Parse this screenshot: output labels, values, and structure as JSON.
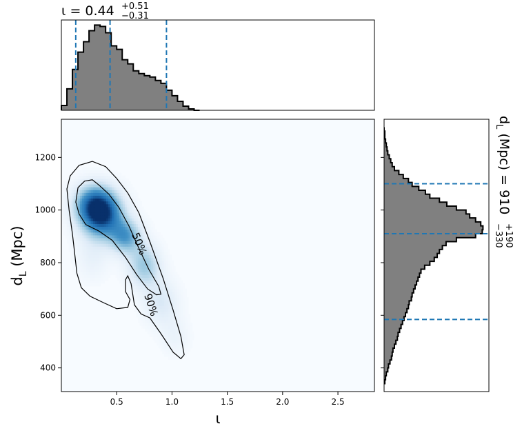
{
  "chart_data": {
    "type": "corner",
    "x_param": "ι",
    "y_param": "d_L",
    "top_title": {
      "main": "ι = 0.44",
      "sup": "+0.51",
      "sub": "−0.31"
    },
    "right_title": {
      "main": "d",
      "sub_L": "L",
      "rest": " (Mpc) = 910",
      "sup": "+190",
      "sub": "−330"
    },
    "main": {
      "xlabel": "ι",
      "ylabel_main": "d",
      "ylabel_sub": "L",
      "ylabel_rest": " (Mpc)",
      "xlim": [
        0.0,
        2.83
      ],
      "ylim": [
        310,
        1345
      ],
      "xticks": [
        0.5,
        1.0,
        1.5,
        2.0,
        2.5
      ],
      "xtick_labels": [
        "0.5",
        "1.0",
        "1.5",
        "2.0",
        "2.5"
      ],
      "yticks": [
        400,
        600,
        800,
        1000,
        1200
      ],
      "ytick_labels": [
        "400",
        "600",
        "800",
        "1000",
        "1200"
      ],
      "contour_labels": [
        "50%",
        "90%"
      ],
      "contour_levels": [
        {
          "name": "90%",
          "points": [
            [
              0.07,
              1000
            ],
            [
              0.05,
              1080
            ],
            [
              0.08,
              1130
            ],
            [
              0.16,
              1170
            ],
            [
              0.28,
              1185
            ],
            [
              0.4,
              1165
            ],
            [
              0.5,
              1120
            ],
            [
              0.6,
              1065
            ],
            [
              0.7,
              990
            ],
            [
              0.8,
              880
            ],
            [
              0.92,
              740
            ],
            [
              1.01,
              620
            ],
            [
              1.08,
              520
            ],
            [
              1.11,
              450
            ],
            [
              1.08,
              435
            ],
            [
              1.01,
              460
            ],
            [
              0.9,
              530
            ],
            [
              0.8,
              590
            ],
            [
              0.72,
              605
            ],
            [
              0.66,
              640
            ],
            [
              0.63,
              720
            ],
            [
              0.6,
              750
            ],
            [
              0.58,
              735
            ],
            [
              0.58,
              690
            ],
            [
              0.62,
              660
            ],
            [
              0.6,
              630
            ],
            [
              0.5,
              625
            ],
            [
              0.38,
              648
            ],
            [
              0.26,
              672
            ],
            [
              0.18,
              705
            ],
            [
              0.14,
              760
            ],
            [
              0.12,
              835
            ],
            [
              0.1,
              910
            ],
            [
              0.07,
              1000
            ]
          ]
        },
        {
          "name": "50%",
          "points": [
            [
              0.13,
              1030
            ],
            [
              0.15,
              1085
            ],
            [
              0.21,
              1110
            ],
            [
              0.28,
              1115
            ],
            [
              0.34,
              1095
            ],
            [
              0.43,
              1060
            ],
            [
              0.52,
              1010
            ],
            [
              0.61,
              940
            ],
            [
              0.7,
              855
            ],
            [
              0.79,
              775
            ],
            [
              0.88,
              710
            ],
            [
              0.9,
              680
            ],
            [
              0.86,
              678
            ],
            [
              0.78,
              700
            ],
            [
              0.68,
              755
            ],
            [
              0.58,
              820
            ],
            [
              0.46,
              885
            ],
            [
              0.34,
              920
            ],
            [
              0.22,
              945
            ],
            [
              0.16,
              985
            ],
            [
              0.13,
              1030
            ]
          ]
        }
      ],
      "density_peaks": [
        {
          "x": 0.36,
          "y": 985,
          "sx": 0.13,
          "sy": 60,
          "w": 1.0
        },
        {
          "x": 0.28,
          "y": 1030,
          "sx": 0.12,
          "sy": 50,
          "w": 0.45
        },
        {
          "x": 0.58,
          "y": 900,
          "sx": 0.1,
          "sy": 45,
          "w": 0.55
        },
        {
          "x": 0.75,
          "y": 790,
          "sx": 0.1,
          "sy": 55,
          "w": 0.42
        },
        {
          "x": 0.9,
          "y": 650,
          "sx": 0.11,
          "sy": 60,
          "w": 0.22
        },
        {
          "x": 1.03,
          "y": 520,
          "sx": 0.09,
          "sy": 50,
          "w": 0.1
        },
        {
          "x": 0.28,
          "y": 820,
          "sx": 0.1,
          "sy": 60,
          "w": 0.12
        }
      ]
    },
    "top_hist": {
      "xlim": [
        0.0,
        2.83
      ],
      "bin_edges": [
        0.0,
        0.05,
        0.1,
        0.15,
        0.2,
        0.25,
        0.3,
        0.35,
        0.4,
        0.45,
        0.5,
        0.55,
        0.6,
        0.65,
        0.7,
        0.75,
        0.8,
        0.85,
        0.9,
        0.95,
        1.0,
        1.05,
        1.1,
        1.15,
        1.2,
        1.25
      ],
      "counts": [
        7,
        31,
        59,
        84,
        99,
        115,
        123,
        121,
        112,
        93,
        88,
        73,
        67,
        57,
        53,
        50,
        48,
        43,
        39,
        29,
        21,
        13,
        6,
        2,
        0
      ],
      "quantile_lines": [
        0.13,
        0.44,
        0.95
      ]
    },
    "right_hist": {
      "ylim": [
        310,
        1345
      ],
      "bin_edges": [
        340,
        355,
        370,
        385,
        400,
        415,
        430,
        445,
        460,
        475,
        490,
        505,
        520,
        535,
        550,
        565,
        580,
        595,
        610,
        625,
        640,
        655,
        670,
        685,
        700,
        715,
        730,
        745,
        760,
        775,
        790,
        805,
        820,
        835,
        850,
        865,
        880,
        895,
        910,
        925,
        940,
        955,
        970,
        985,
        1000,
        1015,
        1030,
        1045,
        1060,
        1075,
        1090,
        1105,
        1120,
        1135,
        1150,
        1165,
        1180,
        1195,
        1210,
        1225,
        1240,
        1255,
        1270,
        1285,
        1300,
        1315
      ],
      "counts": [
        1,
        2,
        3,
        5,
        6,
        8,
        10,
        11,
        12,
        14,
        16,
        18,
        19,
        21,
        23,
        25,
        27,
        29,
        31,
        33,
        34,
        37,
        38,
        40,
        42,
        44,
        46,
        48,
        50,
        55,
        62,
        68,
        72,
        75,
        79,
        84,
        98,
        124,
        133,
        134,
        131,
        124,
        116,
        111,
        98,
        85,
        75,
        62,
        56,
        47,
        38,
        33,
        26,
        20,
        14,
        11,
        9,
        7,
        5,
        4,
        3,
        2,
        1,
        1,
        0
      ],
      "quantile_lines": [
        584,
        910,
        1100
      ]
    }
  }
}
